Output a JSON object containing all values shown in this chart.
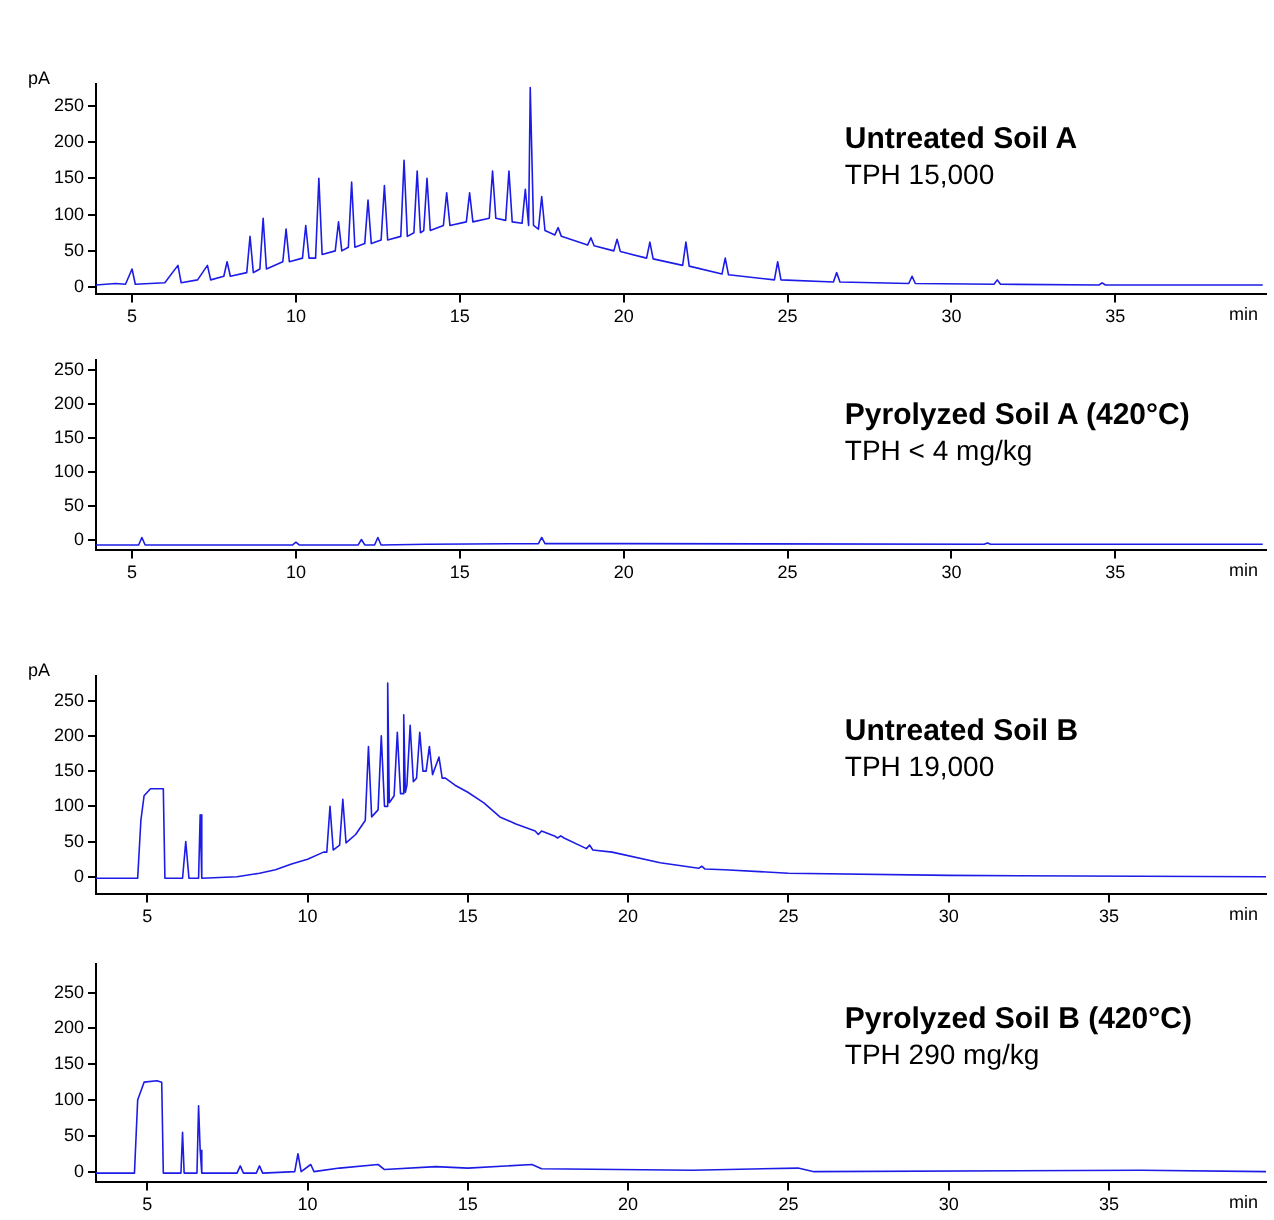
{
  "chart_data": [
    {
      "type": "line",
      "title": "Untreated Soil A",
      "subtitle": "TPH 15,000",
      "ylabel": "pA",
      "xlabel": "min",
      "marker": "none",
      "xlim": [
        3.9,
        39.6
      ],
      "ylim": [
        -10,
        280
      ],
      "xticks": [
        5,
        10,
        15,
        20,
        25,
        30,
        35
      ],
      "yticks": [
        0,
        50,
        100,
        150,
        200,
        250
      ],
      "series": [
        {
          "color": "#1c1ce6",
          "x": [
            3.9,
            4.5,
            4.8,
            5,
            5.1,
            6,
            6.4,
            6.5,
            7,
            7.3,
            7.4,
            7.8,
            7.9,
            8,
            8.5,
            8.6,
            8.7,
            8.9,
            9,
            9.1,
            9.6,
            9.7,
            9.8,
            10.2,
            10.3,
            10.4,
            10.6,
            10.7,
            10.8,
            11.2,
            11.3,
            11.4,
            11.6,
            11.7,
            11.8,
            12.1,
            12.2,
            12.3,
            12.6,
            12.7,
            12.8,
            13.2,
            13.3,
            13.4,
            13.6,
            13.7,
            13.8,
            13.9,
            14,
            14.1,
            14.5,
            14.6,
            14.7,
            15.2,
            15.3,
            15.4,
            15.9,
            16,
            16.1,
            16.4,
            16.5,
            16.6,
            16.9,
            17,
            17.1,
            17.15,
            17.25,
            17.4,
            17.5,
            17.6,
            17.9,
            18,
            18.1,
            18.9,
            19,
            19.1,
            19.7,
            19.8,
            19.9,
            20.7,
            20.8,
            20.9,
            21.8,
            21.9,
            22,
            23,
            23.1,
            23.2,
            24.6,
            24.7,
            24.8,
            26.4,
            26.5,
            26.6,
            28.7,
            28.8,
            28.9,
            31.3,
            31.4,
            31.5,
            34.5,
            34.6,
            34.7,
            39.5
          ],
          "values": [
            3,
            5,
            4,
            25,
            4,
            6,
            30,
            6,
            10,
            30,
            10,
            15,
            35,
            15,
            20,
            70,
            20,
            25,
            95,
            25,
            35,
            80,
            35,
            40,
            85,
            40,
            40,
            150,
            45,
            50,
            90,
            50,
            55,
            145,
            55,
            60,
            120,
            60,
            65,
            140,
            65,
            70,
            175,
            70,
            75,
            160,
            75,
            78,
            150,
            78,
            85,
            130,
            85,
            90,
            130,
            90,
            95,
            160,
            95,
            92,
            160,
            90,
            88,
            135,
            85,
            275,
            85,
            80,
            125,
            78,
            72,
            82,
            70,
            58,
            68,
            57,
            50,
            66,
            49,
            40,
            62,
            39,
            30,
            62,
            29,
            18,
            40,
            17,
            10,
            35,
            10,
            7,
            20,
            7,
            5,
            15,
            5,
            4,
            10,
            4,
            3,
            6,
            3,
            3
          ]
        }
      ]
    },
    {
      "type": "line",
      "title": "Pyrolyzed Soil A (420°C)",
      "subtitle": "TPH < 4 mg/kg",
      "xlabel": "min",
      "marker": "none",
      "xlim": [
        3.9,
        39.6
      ],
      "ylim": [
        -15,
        265
      ],
      "xticks": [
        5,
        10,
        15,
        20,
        25,
        30,
        35
      ],
      "yticks": [
        0,
        50,
        100,
        150,
        200,
        250
      ],
      "series": [
        {
          "color": "#1c1ce6",
          "x": [
            3.9,
            5.2,
            5.3,
            5.4,
            9.9,
            10,
            10.1,
            11.9,
            12,
            12.1,
            12.4,
            12.5,
            12.6,
            14,
            17.4,
            17.5,
            17.6,
            20,
            31,
            31.1,
            31.2,
            39.5
          ],
          "values": [
            -7,
            -7,
            4,
            -7,
            -7,
            -3,
            -7,
            -7,
            1,
            -7,
            -7,
            4,
            -7,
            -6,
            -5,
            4,
            -5,
            -5,
            -6,
            -4,
            -6,
            -6
          ]
        }
      ]
    },
    {
      "type": "line",
      "title": "Untreated Soil B",
      "subtitle": "TPH 19,000",
      "ylabel": "pA",
      "xlabel": "min",
      "marker": "none",
      "xlim": [
        3.4,
        39.9
      ],
      "ylim": [
        -25,
        285
      ],
      "xticks": [
        5,
        10,
        15,
        20,
        25,
        30,
        35
      ],
      "yticks": [
        0,
        50,
        100,
        150,
        200,
        250
      ],
      "series": [
        {
          "color": "#1c1ce6",
          "x": [
            3.4,
            4.7,
            4.8,
            4.9,
            5.1,
            5.5,
            5.55,
            6.1,
            6.2,
            6.3,
            6.6,
            6.65,
            6.7,
            7.8,
            8.5,
            9,
            9.5,
            10,
            10.5,
            10.6,
            10.7,
            10.8,
            11,
            11.1,
            11.2,
            11.5,
            11.8,
            11.9,
            12,
            12.2,
            12.3,
            12.4,
            12.45,
            12.5,
            12.55,
            12.7,
            12.8,
            12.9,
            12.95,
            13,
            13.05,
            13.1,
            13.2,
            13.3,
            13.4,
            13.5,
            13.6,
            13.7,
            13.8,
            13.9,
            14.1,
            14.2,
            14.3,
            14.6,
            15,
            15.5,
            16,
            16.5,
            17.1,
            17.2,
            17.3,
            17.7,
            17.8,
            17.9,
            18,
            18.7,
            18.8,
            18.9,
            19.5,
            21,
            22.2,
            22.3,
            22.4,
            23,
            25,
            30,
            39.9
          ],
          "values": [
            -2,
            -2,
            80,
            115,
            125,
            125,
            -2,
            -2,
            50,
            -2,
            -2,
            88,
            -2,
            0,
            5,
            10,
            18,
            25,
            35,
            35,
            100,
            38,
            45,
            110,
            48,
            60,
            80,
            185,
            85,
            95,
            200,
            100,
            100,
            275,
            105,
            115,
            205,
            118,
            118,
            230,
            120,
            130,
            215,
            135,
            140,
            205,
            150,
            150,
            185,
            145,
            170,
            140,
            140,
            130,
            120,
            105,
            85,
            75,
            65,
            60,
            65,
            58,
            55,
            58,
            55,
            40,
            45,
            38,
            35,
            20,
            12,
            15,
            11,
            10,
            5,
            2,
            0
          ]
        }
      ]
    },
    {
      "type": "line",
      "title": "Pyrolyzed Soil B (420°C)",
      "subtitle": "TPH 290 mg/kg",
      "xlabel": "min",
      "marker": "none",
      "xlim": [
        3.4,
        39.9
      ],
      "ylim": [
        -15,
        290
      ],
      "xticks": [
        5,
        10,
        15,
        20,
        25,
        30,
        35
      ],
      "yticks": [
        0,
        50,
        100,
        150,
        200,
        250
      ],
      "series": [
        {
          "color": "#1c1ce6",
          "x": [
            3.4,
            4.6,
            4.7,
            4.9,
            5.3,
            5.45,
            5.5,
            6.05,
            6.1,
            6.15,
            6.55,
            6.6,
            6.65,
            6.7,
            7.8,
            7.9,
            8,
            8.4,
            8.5,
            8.6,
            9.6,
            9.7,
            9.8,
            10.1,
            10.2,
            11,
            12.2,
            12.4,
            14,
            15,
            17,
            17.3,
            22,
            25.3,
            25.8,
            36,
            39.9
          ],
          "values": [
            -2,
            -2,
            100,
            125,
            127,
            125,
            -2,
            -2,
            55,
            -2,
            -2,
            92,
            30,
            -2,
            -2,
            8,
            -2,
            -2,
            8,
            -2,
            0,
            25,
            0,
            10,
            0,
            5,
            10,
            3,
            7,
            5,
            10,
            4,
            2,
            5,
            0,
            2,
            0
          ]
        }
      ]
    }
  ]
}
